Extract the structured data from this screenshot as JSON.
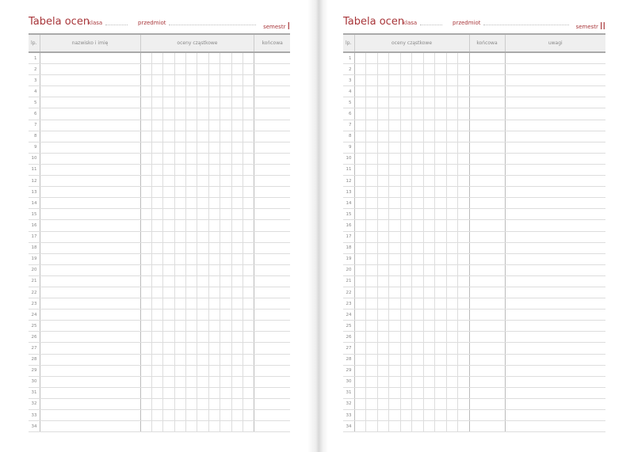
{
  "pages": [
    {
      "title": "Tabela ocen",
      "klasa": "klasa",
      "przedmiot": "przedmiot",
      "semestr": "semestr",
      "semestr_numeral": "I",
      "columns": [
        "lp.",
        "nazwisko i imię",
        "oceny cząstkowe",
        "końcowa"
      ]
    },
    {
      "title": "Tabela ocen",
      "klasa": "klasa",
      "przedmiot": "przedmiot",
      "semestr": "semestr",
      "semestr_numeral": "II",
      "columns": [
        "lp.",
        "oceny cząstkowe",
        "końcowa",
        "uwagi"
      ]
    }
  ],
  "row_count": 34,
  "grade_cells": 10,
  "accent_color": "#a8363a"
}
